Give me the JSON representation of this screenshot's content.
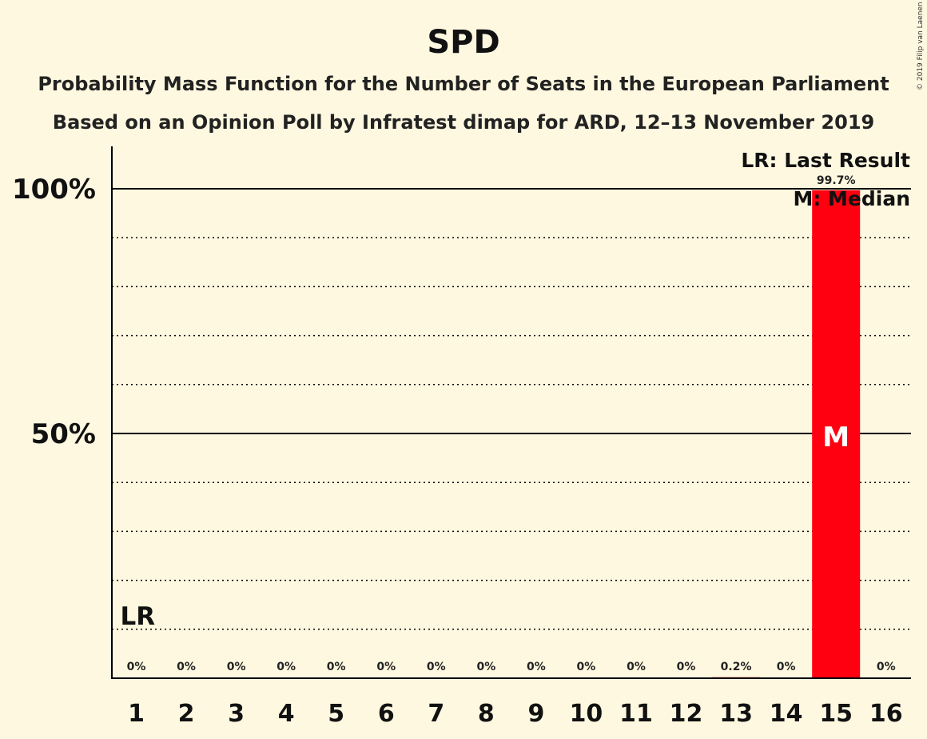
{
  "chart_data": {
    "type": "bar",
    "title": "SPD",
    "subtitle_line1": "Probability Mass Function for the Number of Seats in the European Parliament",
    "subtitle_line2": "Based on an Opinion Poll by Infratest dimap for ARD, 12–13 November 2019",
    "copyright": "© 2019 Filip van Laenen",
    "categories": [
      "1",
      "2",
      "3",
      "4",
      "5",
      "6",
      "7",
      "8",
      "9",
      "10",
      "11",
      "12",
      "13",
      "14",
      "15",
      "16"
    ],
    "values": [
      0,
      0,
      0,
      0,
      0,
      0,
      0,
      0,
      0,
      0,
      0,
      0,
      0.2,
      0,
      99.7,
      0
    ],
    "value_labels": [
      "0%",
      "0%",
      "0%",
      "0%",
      "0%",
      "0%",
      "0%",
      "0%",
      "0%",
      "0%",
      "0%",
      "0%",
      "0.2%",
      "0%",
      "99.7%",
      "0%"
    ],
    "ylim": [
      0,
      100
    ],
    "yticks": [
      {
        "value": 50,
        "label": "50%"
      },
      {
        "value": 100,
        "label": "100%"
      }
    ],
    "minor_gridlines": [
      10,
      20,
      30,
      40,
      60,
      70,
      80,
      90
    ],
    "bar_color": "#ff0011",
    "last_result": {
      "category": "1",
      "label": "LR"
    },
    "median": {
      "category": "15",
      "label": "M"
    },
    "legend": {
      "position": "top-right",
      "entries": [
        "LR: Last Result",
        "M: Median"
      ]
    }
  }
}
